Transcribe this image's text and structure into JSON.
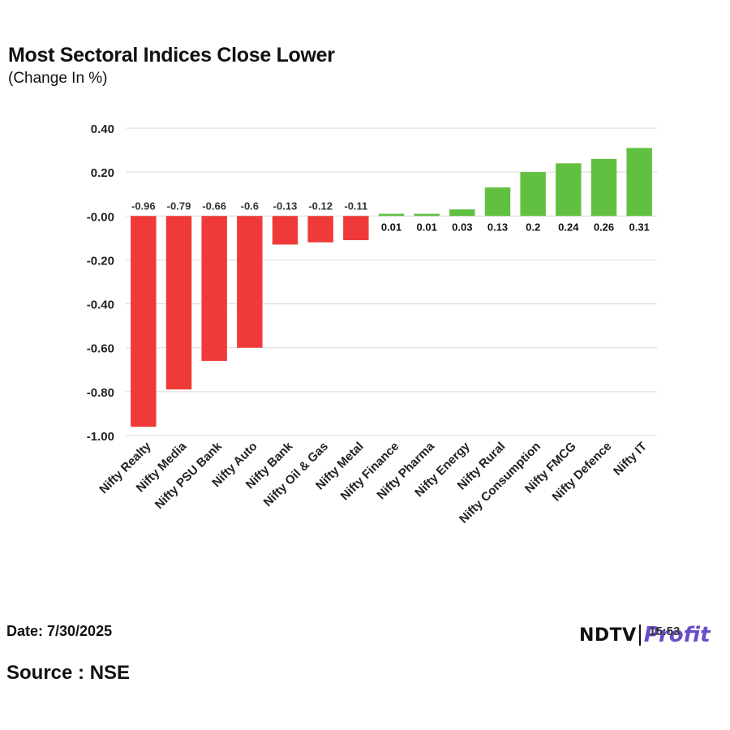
{
  "header": {
    "title": "Most Sectoral Indices Close Lower",
    "subtitle": "(Change In %)"
  },
  "footer": {
    "date": "Date: 7/30/2025",
    "source": "Source : NSE",
    "logo_left": "NDTV",
    "logo_right": "Profit",
    "logo_time": "15:53"
  },
  "colors": {
    "negative": "#f03a3a",
    "positive": "#62c040",
    "grid": "#d9d9d9"
  },
  "chart_data": {
    "type": "bar",
    "title": "Most Sectoral Indices Close Lower",
    "subtitle": "(Change In %)",
    "categories": [
      "Nifty Realty",
      "Nifty Media",
      "Nifty PSU Bank",
      "Nifty Auto",
      "Nifty Bank",
      "Nifty Oil & Gas",
      "Nifty Metal",
      "Nifty Finance",
      "Nifty Pharma",
      "Nifty Energy",
      "Nifty Rural",
      "Nifty Consumption",
      "Nifty FMCG",
      "Nifty Defence",
      "Nifty IT"
    ],
    "values": [
      -0.96,
      -0.79,
      -0.66,
      -0.6,
      -0.13,
      -0.12,
      -0.11,
      0.01,
      0.01,
      0.03,
      0.13,
      0.2,
      0.24,
      0.26,
      0.31
    ],
    "value_labels": [
      "-0.96",
      "-0.79",
      "-0.66",
      "-0.6",
      "-0.13",
      "-0.12",
      "-0.11",
      "0.01",
      "0.01",
      "0.03",
      "0.13",
      "0.2",
      "0.24",
      "0.26",
      "0.31"
    ],
    "yticks": [
      0.4,
      0.2,
      0.0,
      -0.2,
      -0.4,
      -0.6,
      -0.8,
      -1.0
    ],
    "ytick_labels": [
      "0.40",
      "0.20",
      "-0.00",
      "-0.20",
      "-0.40",
      "-0.60",
      "-0.80",
      "-1.00"
    ],
    "ylim": [
      -1.0,
      0.4
    ],
    "grid": true,
    "legend": "none"
  }
}
